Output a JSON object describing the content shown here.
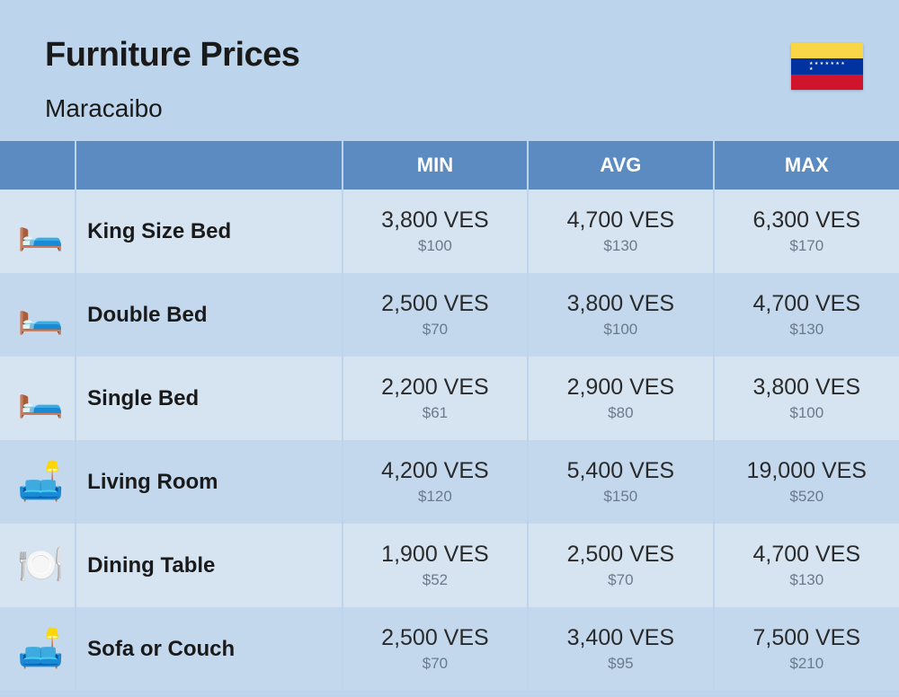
{
  "header": {
    "title": "Furniture Prices",
    "subtitle": "Maracaibo",
    "flag_colors": [
      "#f8d648",
      "#0033a0",
      "#cf142b"
    ]
  },
  "columns": {
    "min": "MIN",
    "avg": "AVG",
    "max": "MAX"
  },
  "rows": [
    {
      "icon": "🛏️",
      "name": "King Size Bed",
      "min_ves": "3,800 VES",
      "min_usd": "$100",
      "avg_ves": "4,700 VES",
      "avg_usd": "$130",
      "max_ves": "6,300 VES",
      "max_usd": "$170"
    },
    {
      "icon": "🛏️",
      "name": "Double Bed",
      "min_ves": "2,500 VES",
      "min_usd": "$70",
      "avg_ves": "3,800 VES",
      "avg_usd": "$100",
      "max_ves": "4,700 VES",
      "max_usd": "$130"
    },
    {
      "icon": "🛏️",
      "name": "Single Bed",
      "min_ves": "2,200 VES",
      "min_usd": "$61",
      "avg_ves": "2,900 VES",
      "avg_usd": "$80",
      "max_ves": "3,800 VES",
      "max_usd": "$100"
    },
    {
      "icon": "🛋️",
      "name": "Living Room",
      "min_ves": "4,200 VES",
      "min_usd": "$120",
      "avg_ves": "5,400 VES",
      "avg_usd": "$150",
      "max_ves": "19,000 VES",
      "max_usd": "$520"
    },
    {
      "icon": "🍽️",
      "name": "Dining Table",
      "min_ves": "1,900 VES",
      "min_usd": "$52",
      "avg_ves": "2,500 VES",
      "avg_usd": "$70",
      "max_ves": "4,700 VES",
      "max_usd": "$130"
    },
    {
      "icon": "🛋️",
      "name": "Sofa or Couch",
      "min_ves": "2,500 VES",
      "min_usd": "$70",
      "avg_ves": "3,400 VES",
      "avg_usd": "$95",
      "max_ves": "7,500 VES",
      "max_usd": "$210"
    }
  ]
}
